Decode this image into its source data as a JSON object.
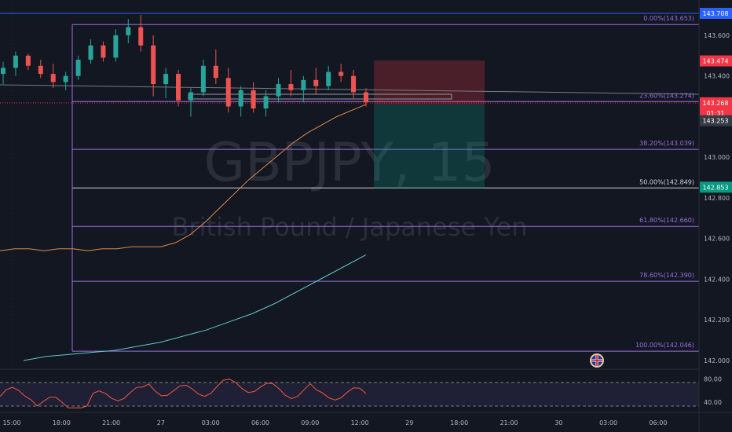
{
  "chart_data": {
    "type": "candlestick",
    "symbol": "GBPJPY",
    "interval": "15",
    "watermark_symbol": "GBPJPY, 15",
    "watermark_desc": "British Pound / Japanese Yen",
    "candles": [
      [
        143.41,
        143.47,
        143.36,
        143.44
      ],
      [
        143.44,
        143.52,
        143.4,
        143.5
      ],
      [
        143.5,
        143.51,
        143.43,
        143.45
      ],
      [
        143.45,
        143.48,
        143.39,
        143.41
      ],
      [
        143.41,
        143.46,
        143.34,
        143.37
      ],
      [
        143.37,
        143.42,
        143.33,
        143.4
      ],
      [
        143.4,
        143.5,
        143.38,
        143.48
      ],
      [
        143.48,
        143.58,
        143.46,
        143.55
      ],
      [
        143.55,
        143.57,
        143.47,
        143.49
      ],
      [
        143.49,
        143.63,
        143.47,
        143.6
      ],
      [
        143.6,
        143.68,
        143.56,
        143.64
      ],
      [
        143.64,
        143.7,
        143.52,
        143.55
      ],
      [
        143.55,
        143.6,
        143.3,
        143.36
      ],
      [
        143.36,
        143.44,
        143.29,
        143.41
      ],
      [
        143.41,
        143.43,
        143.25,
        143.28
      ],
      [
        143.28,
        143.34,
        143.2,
        143.32
      ],
      [
        143.32,
        143.48,
        143.3,
        143.45
      ],
      [
        143.45,
        143.53,
        143.36,
        143.39
      ],
      [
        143.39,
        143.44,
        143.22,
        143.25
      ],
      [
        143.25,
        143.35,
        143.2,
        143.33
      ],
      [
        143.33,
        143.37,
        143.22,
        143.24
      ],
      [
        143.24,
        143.33,
        143.2,
        143.3
      ],
      [
        143.3,
        143.39,
        143.27,
        143.36
      ],
      [
        143.36,
        143.43,
        143.3,
        143.33
      ],
      [
        143.33,
        143.4,
        143.27,
        143.38
      ],
      [
        143.38,
        143.44,
        143.31,
        143.35
      ],
      [
        143.35,
        143.45,
        143.33,
        143.42
      ],
      [
        143.42,
        143.46,
        143.37,
        143.4
      ],
      [
        143.4,
        143.43,
        143.29,
        143.32
      ],
      [
        143.32,
        143.34,
        143.25,
        143.27
      ]
    ],
    "moving_averages": [
      {
        "name": "MA 1",
        "color": "#e08a4a",
        "values": [
          142.54,
          142.55,
          142.55,
          142.54,
          142.55,
          142.55,
          142.54,
          142.55,
          142.55,
          142.56,
          142.56,
          142.56,
          142.58,
          142.62,
          142.68,
          142.75,
          142.82,
          142.89,
          142.95,
          143.01,
          143.07,
          143.12,
          143.16,
          143.2,
          143.23,
          143.26
        ]
      },
      {
        "name": "MA 2",
        "color": "#5fc8c8",
        "values": [
          142.0,
          142.02,
          142.03,
          142.04,
          142.05,
          142.07,
          142.09,
          142.12,
          142.15,
          142.19,
          142.23,
          142.28,
          142.34,
          142.4,
          142.46,
          142.52
        ]
      }
    ],
    "fib_levels": [
      {
        "ratio": "0.00%",
        "price": 143.653,
        "label": "0.00%(143.653)"
      },
      {
        "ratio": "23.60%",
        "price": 143.274,
        "label": "23.60%(143.274)"
      },
      {
        "ratio": "38.20%",
        "price": 143.039,
        "label": "38.20%(143.039)"
      },
      {
        "ratio": "50.00%",
        "price": 142.849,
        "label": "50.00%(142.849)"
      },
      {
        "ratio": "61.80%",
        "price": 142.66,
        "label": "61.80%(142.660)"
      },
      {
        "ratio": "78.60%",
        "price": 142.39,
        "label": "78.60%(142.390)"
      },
      {
        "ratio": "100.00%",
        "price": 142.046,
        "label": "100.00%(142.046)"
      }
    ],
    "price_axis_ticks": [
      "143.600",
      "143.400",
      "143.200",
      "143.000",
      "142.800",
      "142.600",
      "142.400",
      "142.200",
      "142.000"
    ],
    "price_axis_tick_values": [
      143.6,
      143.4,
      143.2,
      143.0,
      142.8,
      142.6,
      142.4,
      142.2,
      142.0
    ],
    "price_badges": [
      {
        "value": "143.708",
        "color": "#2962ff",
        "price": 143.708
      },
      {
        "value": "143.474",
        "color": "#f23645",
        "price": 143.474
      },
      {
        "value": "143.268",
        "color": "#f23645",
        "price": 143.268
      },
      {
        "value": "01:31",
        "color": "#f23645",
        "price": 143.218
      },
      {
        "value": "143.253",
        "color": "#363a45",
        "price": 143.18
      },
      {
        "value": "142.853",
        "color": "#089981",
        "price": 142.853
      }
    ],
    "time_axis_ticks": [
      "15:00",
      "18:00",
      "21:00",
      "27",
      "03:00",
      "06:00",
      "09:00",
      "12:00",
      "29",
      "18:00",
      "21:00",
      "30",
      "03:00",
      "06:00"
    ],
    "rsi_ticks": [
      "80.00",
      "40.00"
    ],
    "rsi_tick_values": [
      80,
      40
    ],
    "rsi_bands": [
      70,
      30
    ],
    "rsi_range": [
      25,
      85
    ],
    "price_range": [
      141.98,
      143.78
    ]
  },
  "icons": {
    "flag": "uk-flag-icon"
  }
}
